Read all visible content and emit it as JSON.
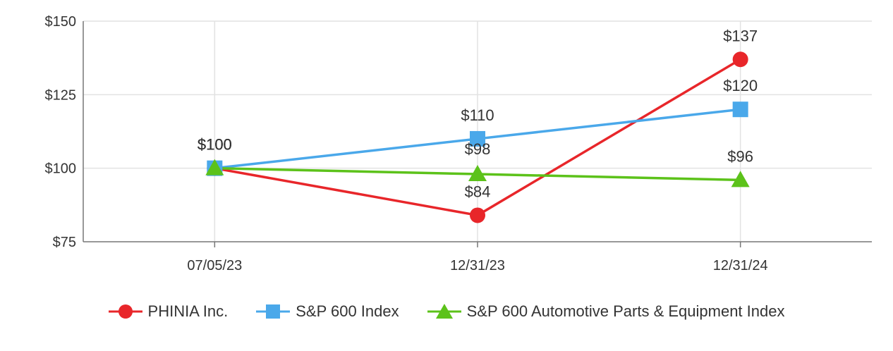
{
  "chart_data": {
    "type": "line",
    "title": "",
    "xlabel": "",
    "ylabel": "",
    "categories": [
      "07/05/23",
      "12/31/23",
      "12/31/24"
    ],
    "ylim": [
      75,
      150
    ],
    "yticks": [
      75,
      100,
      125,
      150
    ],
    "ytick_labels": [
      "$75",
      "$100",
      "$125",
      "$150"
    ],
    "grid": true,
    "legend_position": "bottom",
    "series": [
      {
        "name": "PHINIA Inc.",
        "values": [
          100,
          84,
          137
        ],
        "labels": [
          "$100",
          "$84",
          "$137"
        ],
        "color": "#e8262a",
        "marker": "circle"
      },
      {
        "name": "S&P 600 Index",
        "values": [
          100,
          110,
          120
        ],
        "labels": [
          "$100",
          "$110",
          "$120"
        ],
        "color": "#4aa8ea",
        "marker": "square"
      },
      {
        "name": "S&P 600 Automotive Parts & Equipment Index",
        "values": [
          100,
          98,
          96
        ],
        "labels": [
          "$100",
          "$98",
          "$96"
        ],
        "color": "#5cc21a",
        "marker": "triangle"
      }
    ]
  }
}
